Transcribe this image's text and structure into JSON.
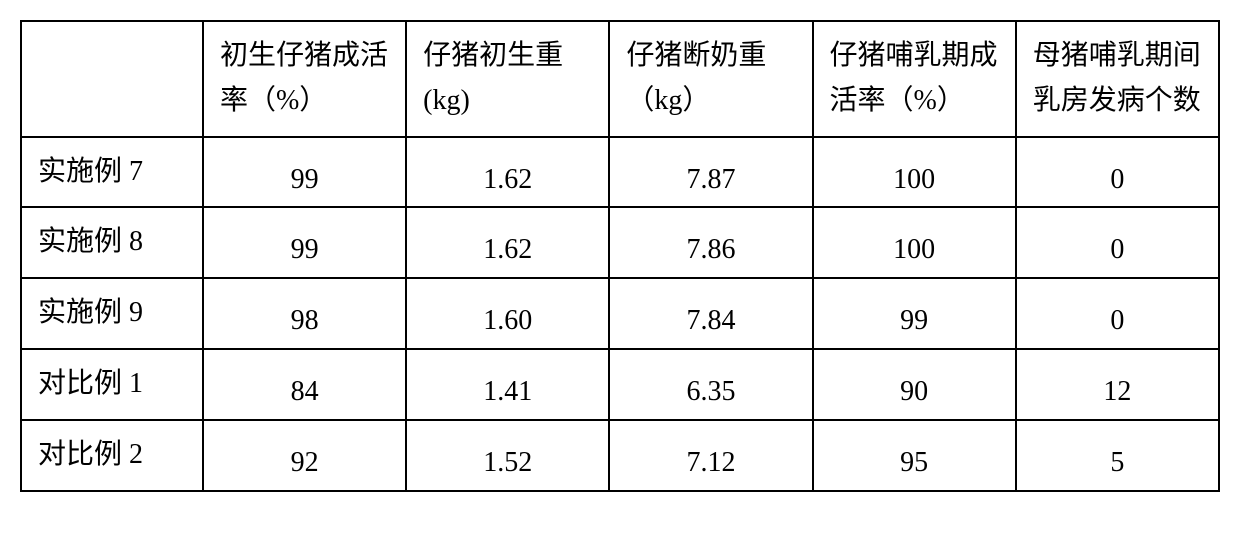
{
  "table": {
    "type": "table",
    "background_color": "#ffffff",
    "border_color": "#000000",
    "border_width": 2,
    "font_size": 28,
    "font_family": "SimSun",
    "columns": [
      {
        "label": "",
        "align": "left"
      },
      {
        "label": "初生仔猪成活率（%）",
        "align": "center"
      },
      {
        "label": "仔猪初生重(kg)",
        "align": "center"
      },
      {
        "label": "仔猪断奶重（kg）",
        "align": "center"
      },
      {
        "label": "仔猪哺乳期成活率（%）",
        "align": "center"
      },
      {
        "label": "母猪哺乳期间乳房发病个数",
        "align": "center"
      }
    ],
    "rows": [
      {
        "label": "实施例 7",
        "values": [
          "99",
          "1.62",
          "7.87",
          "100",
          "0"
        ]
      },
      {
        "label": "实施例 8",
        "values": [
          "99",
          "1.62",
          "7.86",
          "100",
          "0"
        ]
      },
      {
        "label": "实施例 9",
        "values": [
          "98",
          "1.60",
          "7.84",
          "99",
          "0"
        ]
      },
      {
        "label": "对比例 1",
        "values": [
          "84",
          "1.41",
          "6.35",
          "90",
          "12"
        ]
      },
      {
        "label": "对比例 2",
        "values": [
          "92",
          "1.52",
          "7.12",
          "95",
          "5"
        ]
      }
    ]
  }
}
